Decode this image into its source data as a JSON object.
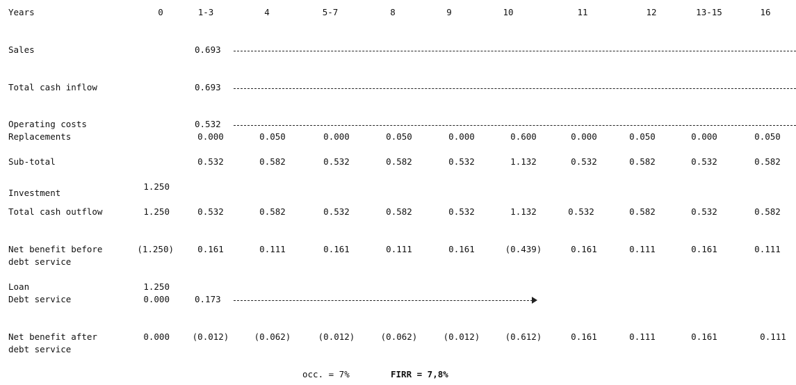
{
  "header": {
    "label": "Years",
    "columns": [
      "0",
      "1-3",
      "4",
      "5-7",
      "8",
      "9",
      "10",
      "11",
      "12",
      "13-15",
      "16"
    ]
  },
  "rows": {
    "sales": {
      "label": "Sales",
      "y1_3": "0.693"
    },
    "cash_inflow": {
      "label": "Total cash inflow",
      "y1_3": "0.693"
    },
    "op_costs": {
      "label": "Operating costs",
      "y1_3": "0.532"
    },
    "replacements": {
      "label": "Replacements",
      "values": [
        "0.000",
        "0.050",
        "0.000",
        "0.050",
        "0.000",
        "0.600",
        "0.000",
        "0.050",
        "0.000",
        "0.050"
      ]
    },
    "subtotal": {
      "label": "Sub-total",
      "values": [
        "0.532",
        "0.582",
        "0.532",
        "0.582",
        "0.532",
        "1.132",
        "0.532",
        "0.582",
        "0.532",
        "0.582"
      ]
    },
    "investment": {
      "label": "Investment",
      "y0": "1.250"
    },
    "cash_outflow": {
      "label": "Total cash outflow",
      "y0": "1.250",
      "values": [
        "0.532",
        "0.582",
        "0.532",
        "0.582",
        "0.532",
        "1.132",
        "0.532",
        "0.582",
        "0.532",
        "0.582"
      ]
    },
    "net_before": {
      "label_line1": "Net benefit before",
      "label_line2": "debt service",
      "y0": "(1.250)",
      "values": [
        "0.161",
        "0.111",
        "0.161",
        "0.111",
        "0.161",
        "(0.439)",
        "0.161",
        "0.111",
        "0.161",
        "0.111"
      ]
    },
    "loan": {
      "label": "Loan",
      "y0": "1.250"
    },
    "debt_service": {
      "label": "Debt service",
      "y0": "0.000",
      "y1_3": "0.173"
    },
    "net_after": {
      "label_line1": "Net benefit after",
      "label_line2": "debt service",
      "y0": "0.000",
      "values": [
        "(0.012)",
        "(0.062)",
        "(0.012)",
        "(0.062)",
        "(0.012)",
        "(0.612)",
        "0.161",
        "0.111",
        "0.161",
        "0.111"
      ]
    }
  },
  "footer": {
    "occ": "occ. = 7%",
    "firr": "FIRR = 7,8%"
  }
}
